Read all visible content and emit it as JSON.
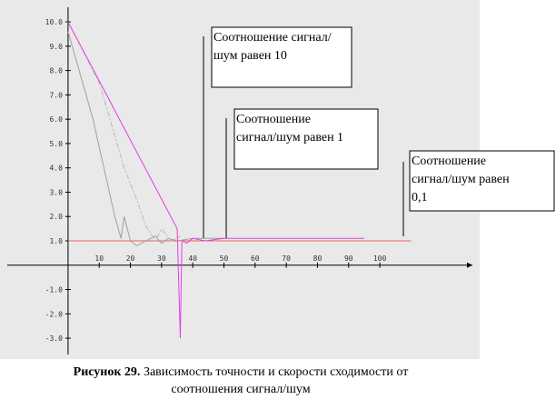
{
  "chart_data": {
    "type": "line",
    "xlim": [
      -19.5,
      129.7
    ],
    "ylim": [
      -3.67,
      10.6
    ],
    "xticks": [
      10,
      20,
      30,
      40,
      50,
      60,
      70,
      80,
      90,
      100
    ],
    "yticks": [
      {
        "value": 10,
        "label": "10.0"
      },
      {
        "value": 9,
        "label": "9.0"
      },
      {
        "value": 8,
        "label": "8.0"
      },
      {
        "value": 7,
        "label": "7.0"
      },
      {
        "value": 6,
        "label": "6.0"
      },
      {
        "value": 5,
        "label": "5.0"
      },
      {
        "value": 4,
        "label": "4.0"
      },
      {
        "value": 3,
        "label": "3.0"
      },
      {
        "value": 2,
        "label": "2.0"
      },
      {
        "value": 1,
        "label": "1.0"
      },
      {
        "value": -1,
        "label": "-1.0"
      },
      {
        "value": -2,
        "label": "-2.0"
      },
      {
        "value": -3,
        "label": "-3.0"
      }
    ],
    "series": [
      {
        "color": "#f06060",
        "x": [
          0,
          110
        ],
        "values": [
          1,
          1
        ]
      },
      {
        "color": "#a0a0a0",
        "x": [
          0,
          8,
          15,
          17,
          18,
          20,
          22,
          25,
          28,
          30,
          32,
          35,
          40,
          45,
          50
        ],
        "values": [
          9.6,
          6,
          2,
          1.1,
          2,
          1,
          0.8,
          1,
          1.2,
          0.9,
          1.1,
          1,
          1.1,
          1.1,
          1.1
        ]
      },
      {
        "color": "#b8b8b8",
        "dash": "6 2 2 2",
        "x": [
          0,
          10,
          18,
          22,
          25,
          28,
          30,
          33,
          36
        ],
        "values": [
          10,
          7.5,
          4,
          2.7,
          1.6,
          1,
          1.5,
          1,
          1.2
        ]
      },
      {
        "color": "#e040e0",
        "x": [
          0,
          35,
          36,
          36.5,
          37,
          38,
          40,
          44,
          50,
          55,
          95
        ],
        "values": [
          10,
          1.5,
          -3,
          0.9,
          1,
          0.9,
          1.1,
          1,
          1.1,
          1.1,
          1.1
        ]
      }
    ],
    "annotations": [
      "Соотношение сигнал/шум равен 10",
      "Соотношение сигнал/шум равен 1",
      "Соотношение сигнал/шум равен 0,1"
    ]
  },
  "caption": {
    "label": "Рисунок 29.",
    "text": " Зависимость точности и скорости сходимости от",
    "text2": "соотношения сигнал/шум"
  }
}
